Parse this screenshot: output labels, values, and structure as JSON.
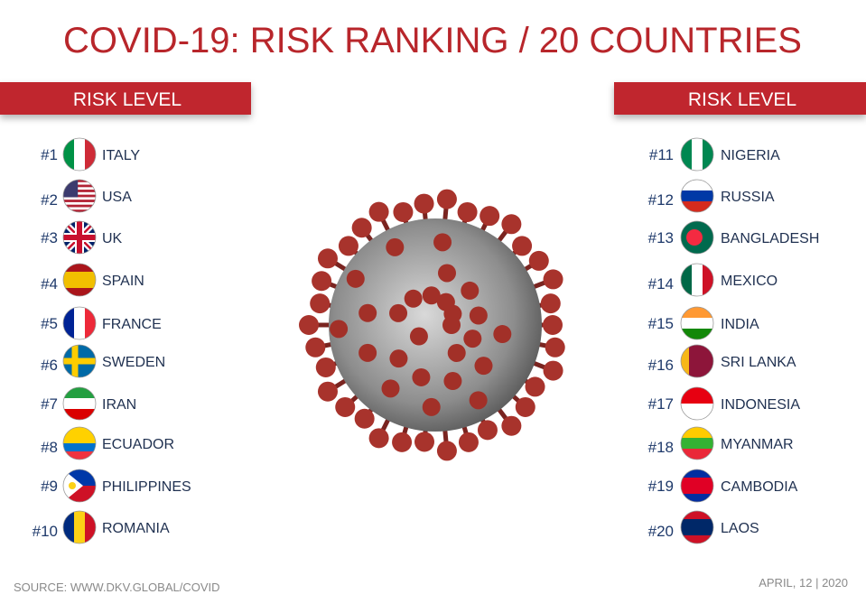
{
  "title": "COVID-19: RISK RANKING / 20 COUNTRIES",
  "left_panel": {
    "header": "RISK LEVEL",
    "items": [
      {
        "rank": "#1",
        "country": "ITALY"
      },
      {
        "rank": "#2",
        "country": "USA"
      },
      {
        "rank": "#3",
        "country": "UK"
      },
      {
        "rank": "#4",
        "country": "SPAIN"
      },
      {
        "rank": "#5",
        "country": "FRANCE"
      },
      {
        "rank": "#6",
        "country": "SWEDEN"
      },
      {
        "rank": "#7",
        "country": "IRAN"
      },
      {
        "rank": "#8",
        "country": "ECUADOR"
      },
      {
        "rank": "#9",
        "country": "PHILIPPINES"
      },
      {
        "rank": "#10",
        "country": "ROMANIA"
      }
    ]
  },
  "right_panel": {
    "header": "RISK LEVEL",
    "items": [
      {
        "rank": "#11",
        "country": "NIGERIA"
      },
      {
        "rank": "#12",
        "country": "RUSSIA"
      },
      {
        "rank": "#13",
        "country": "BANGLADESH"
      },
      {
        "rank": "#14",
        "country": "MEXICO"
      },
      {
        "rank": "#15",
        "country": "INDIA"
      },
      {
        "rank": "#16",
        "country": "SRI LANKA"
      },
      {
        "rank": "#17",
        "country": "INDONESIA"
      },
      {
        "rank": "#18",
        "country": "MYANMAR"
      },
      {
        "rank": "#19",
        "country": "CAMBODIA"
      },
      {
        "rank": "#20",
        "country": "LAOS"
      }
    ]
  },
  "footer": {
    "source": "SOURCE: WWW.DKV.GLOBAL/COVID",
    "date": "APRIL, 12 | 2020"
  }
}
